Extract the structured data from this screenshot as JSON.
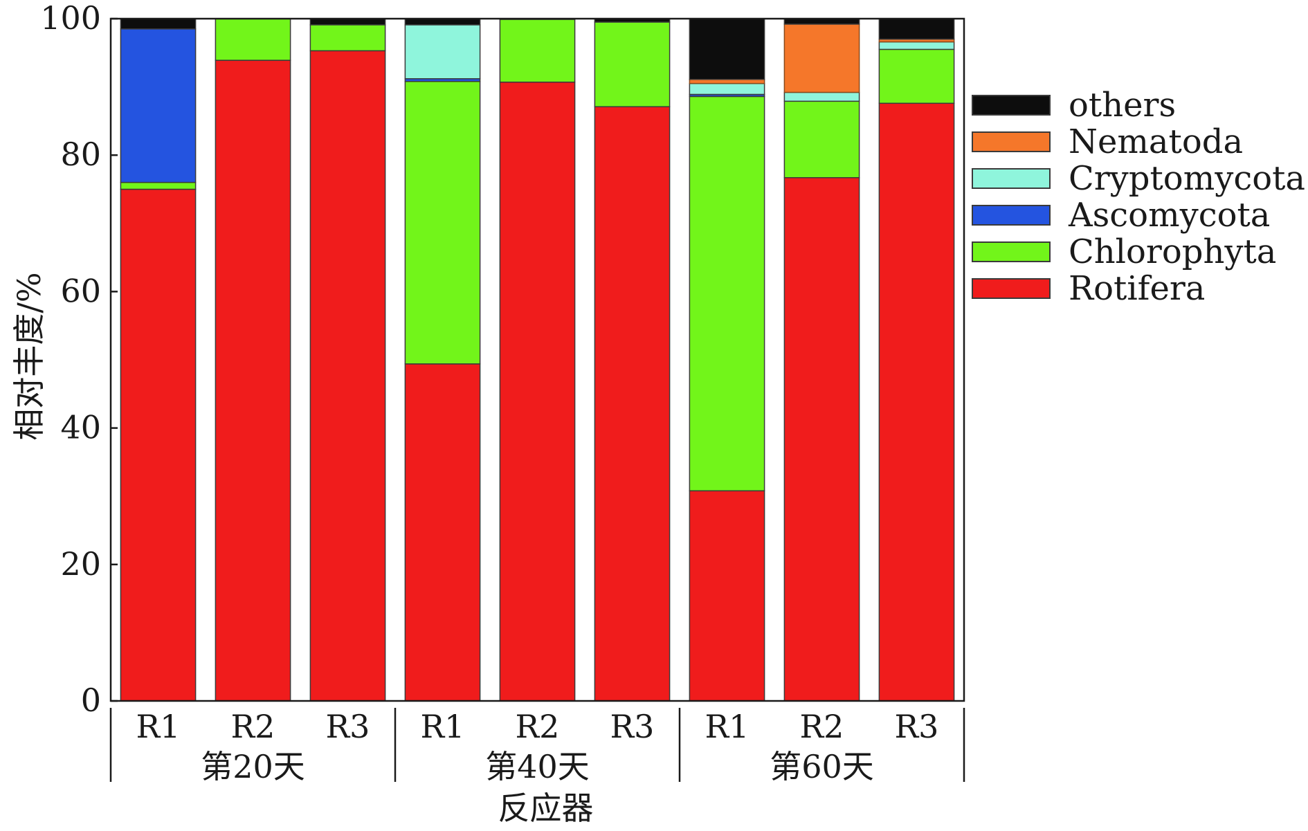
{
  "chart_data": {
    "type": "bar",
    "stacked": true,
    "title": "",
    "xlabel": "反应器",
    "ylabel": "相对丰度/%",
    "ylim": [
      0,
      100
    ],
    "yticks": [
      0,
      20,
      40,
      60,
      80,
      100
    ],
    "grid": false,
    "legend_position": "right",
    "groups": [
      {
        "label": "第20天",
        "categories": [
          "R1",
          "R2",
          "R3"
        ]
      },
      {
        "label": "第40天",
        "categories": [
          "R1",
          "R2",
          "R3"
        ]
      },
      {
        "label": "第60天",
        "categories": [
          "R1",
          "R2",
          "R3"
        ]
      }
    ],
    "series": [
      {
        "name": "Rotifera",
        "color": "#f01c1c",
        "values": [
          75.0,
          93.9,
          95.3,
          49.4,
          90.7,
          87.1,
          30.8,
          76.7,
          87.6
        ]
      },
      {
        "name": "Chlorophyta",
        "color": "#72f51a",
        "values": [
          1.0,
          6.1,
          3.8,
          41.4,
          9.2,
          12.4,
          57.8,
          11.2,
          7.9
        ]
      },
      {
        "name": "Ascomycota",
        "color": "#2454e0",
        "values": [
          22.5,
          0,
          0,
          0.4,
          0,
          0,
          0.3,
          0,
          0
        ]
      },
      {
        "name": "Cryptomycota",
        "color": "#8ff5dc",
        "values": [
          0,
          0,
          0,
          7.9,
          0,
          0,
          1.6,
          1.3,
          1.1
        ]
      },
      {
        "name": "Nematoda",
        "color": "#f5772a",
        "values": [
          0,
          0,
          0,
          0,
          0,
          0,
          0.6,
          10.0,
          0.4
        ]
      },
      {
        "name": "others",
        "color": "#0d0d0d",
        "values": [
          1.5,
          0,
          0.9,
          0.9,
          0.1,
          0.5,
          8.9,
          0.8,
          3.0
        ]
      }
    ]
  }
}
